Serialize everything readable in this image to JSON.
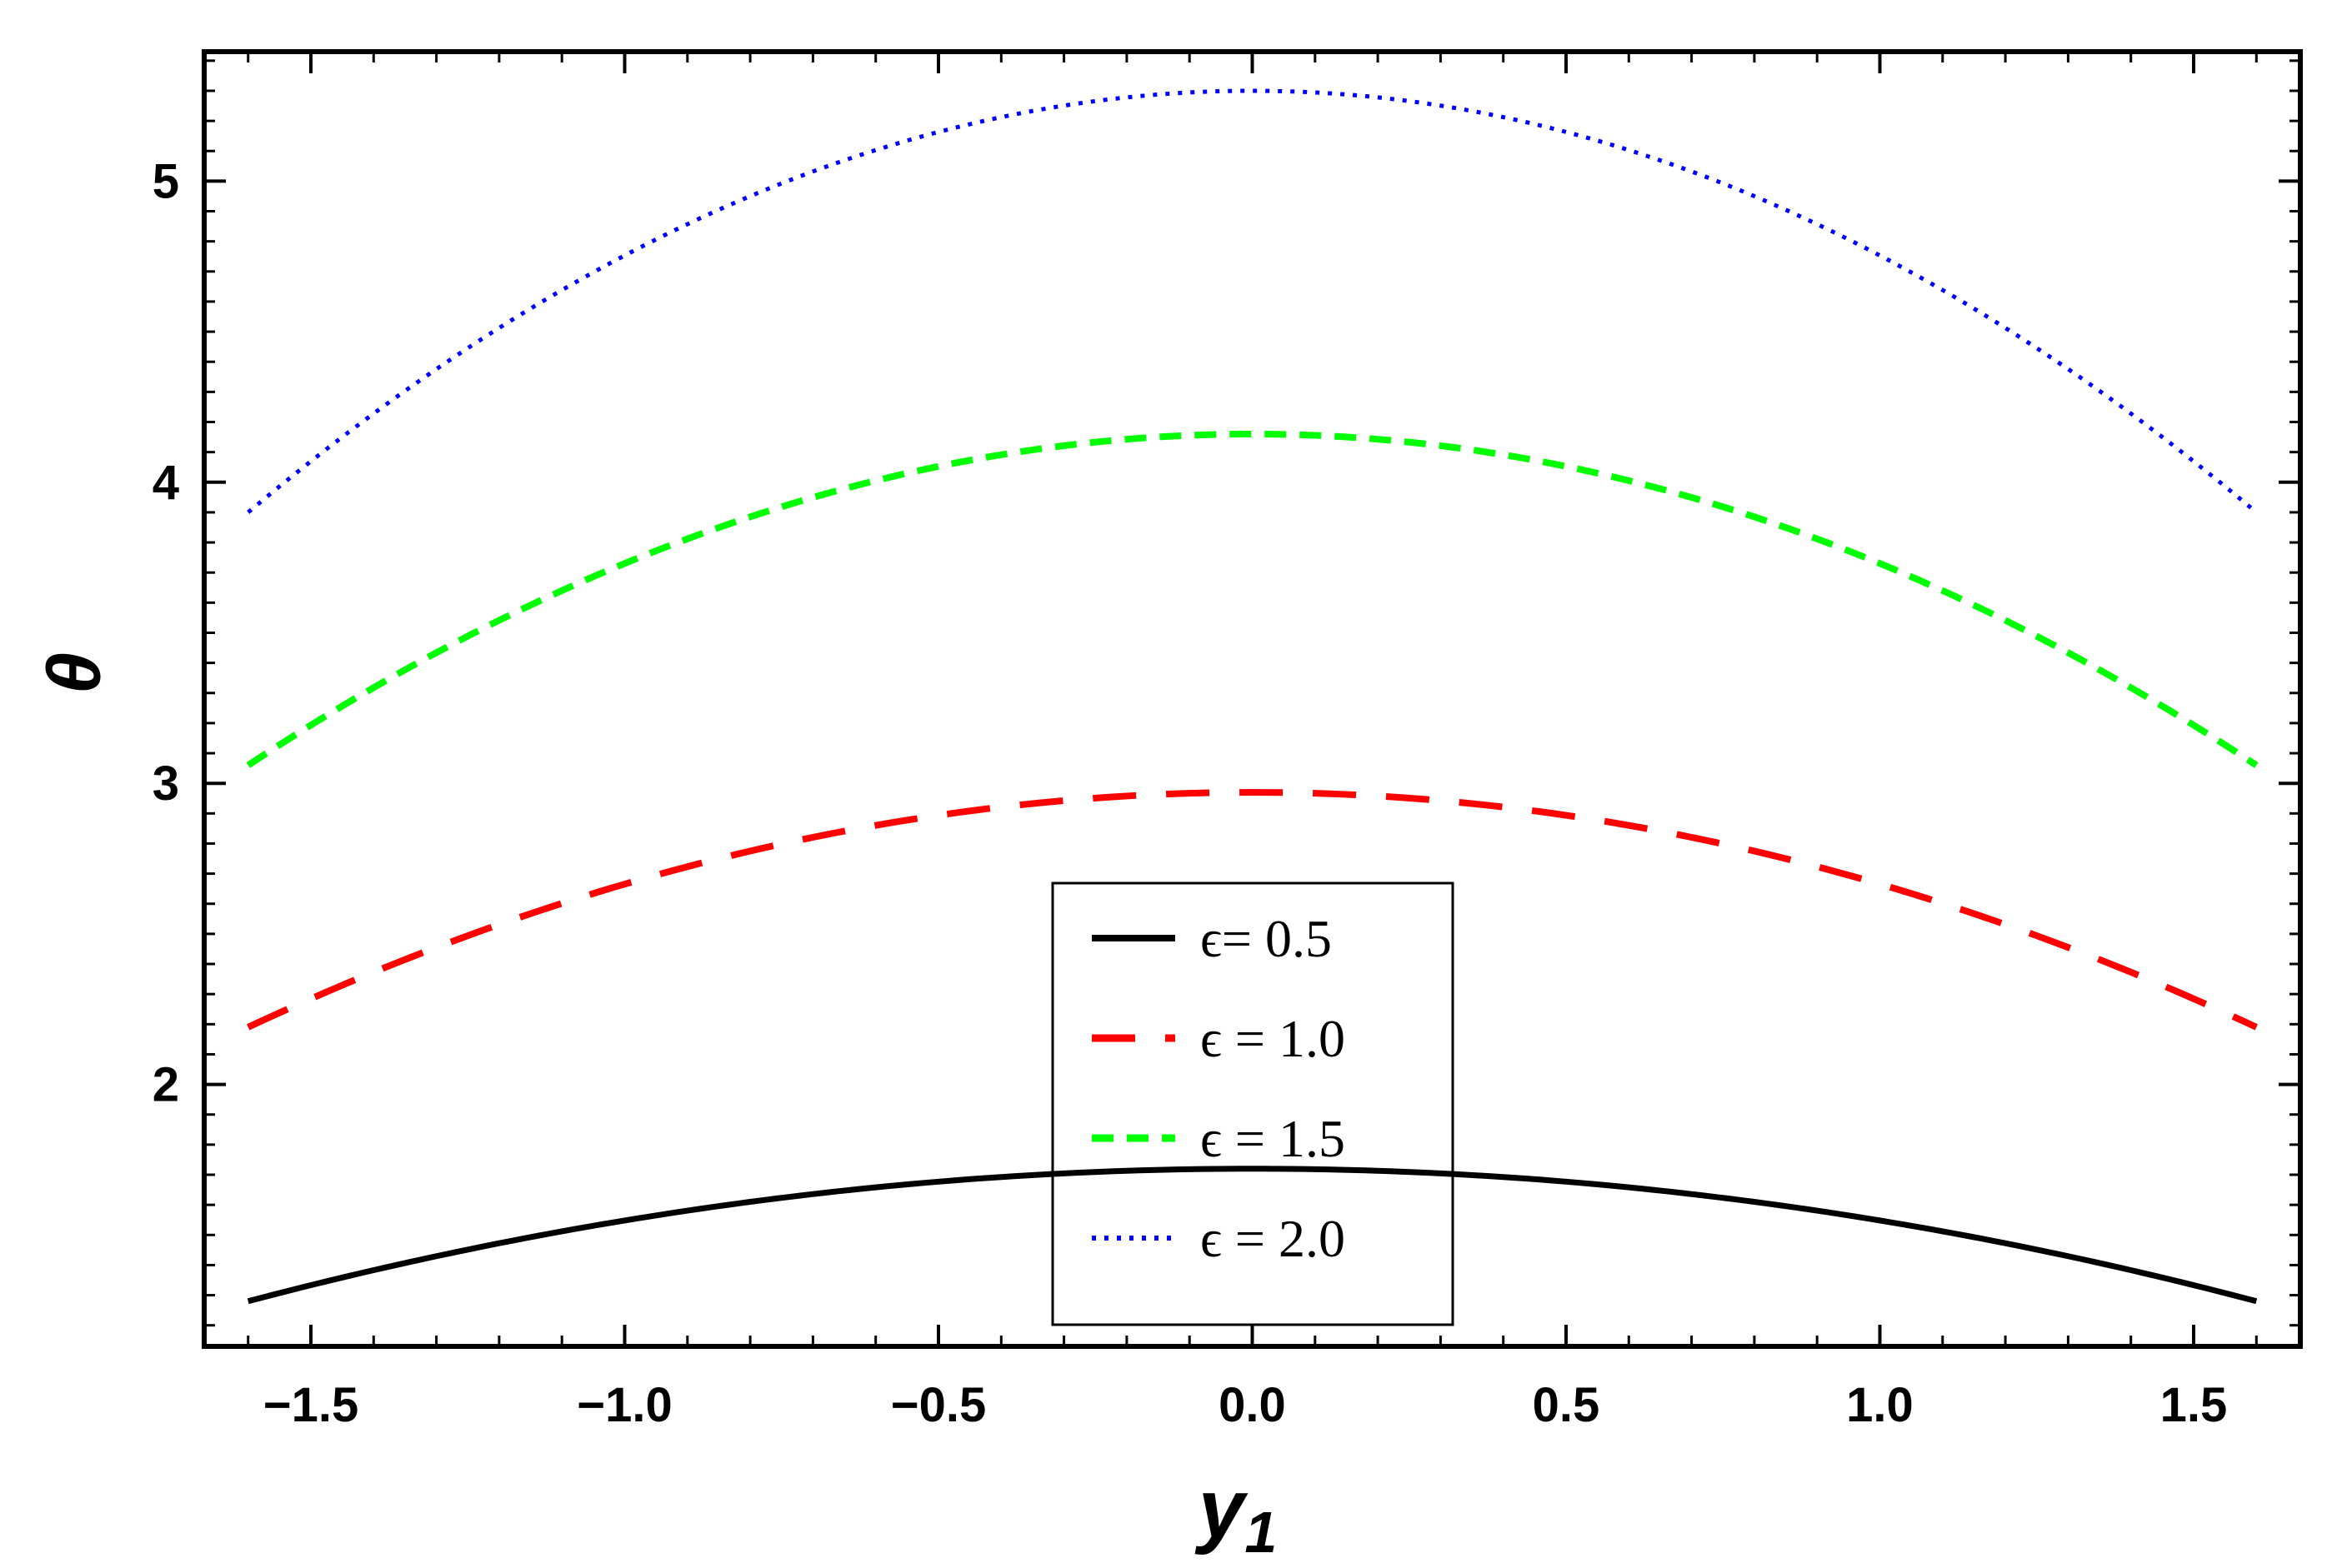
{
  "chart_data": {
    "type": "line",
    "xlabel": "y",
    "xlabel_sub": "1",
    "ylabel": "θ",
    "xlim": [
      -1.67,
      1.67
    ],
    "ylim": [
      1.13,
      5.43
    ],
    "x_ticks": [
      -1.5,
      -1.0,
      -0.5,
      0.0,
      0.5,
      1.0,
      1.5
    ],
    "x_tick_labels": [
      "−1.5",
      "−1.0",
      "−0.5",
      "0.0",
      "0.5",
      "1.0",
      "1.5"
    ],
    "y_ticks": [
      2,
      3,
      4,
      5
    ],
    "y_tick_labels": [
      "2",
      "3",
      "4",
      "5"
    ],
    "grid": false,
    "legend_position": "bottom-center",
    "x": [
      -1.6,
      -1.2,
      -0.8,
      -0.4,
      0.0,
      0.4,
      0.8,
      1.2,
      1.6
    ],
    "series": [
      {
        "name": "ϵ= 0.5",
        "color": "#000000",
        "dash": "solid",
        "values": [
          1.28,
          1.49,
          1.62,
          1.7,
          1.72,
          1.7,
          1.62,
          1.49,
          1.28
        ]
      },
      {
        "name": "ϵ = 1.0",
        "color": "#ff0000",
        "dash": "long-dash",
        "values": [
          2.19,
          2.56,
          2.8,
          2.93,
          2.97,
          2.93,
          2.8,
          2.56,
          2.19
        ]
      },
      {
        "name": "ϵ = 1.5",
        "color": "#00ff00",
        "dash": "short-dash",
        "values": [
          3.06,
          3.56,
          3.9,
          4.1,
          4.16,
          4.1,
          3.9,
          3.56,
          3.06
        ]
      },
      {
        "name": "ϵ = 2.0",
        "color": "#0000ff",
        "dash": "dotted",
        "values": [
          3.9,
          4.54,
          4.98,
          5.22,
          5.3,
          5.22,
          4.98,
          4.54,
          3.9
        ]
      }
    ]
  }
}
